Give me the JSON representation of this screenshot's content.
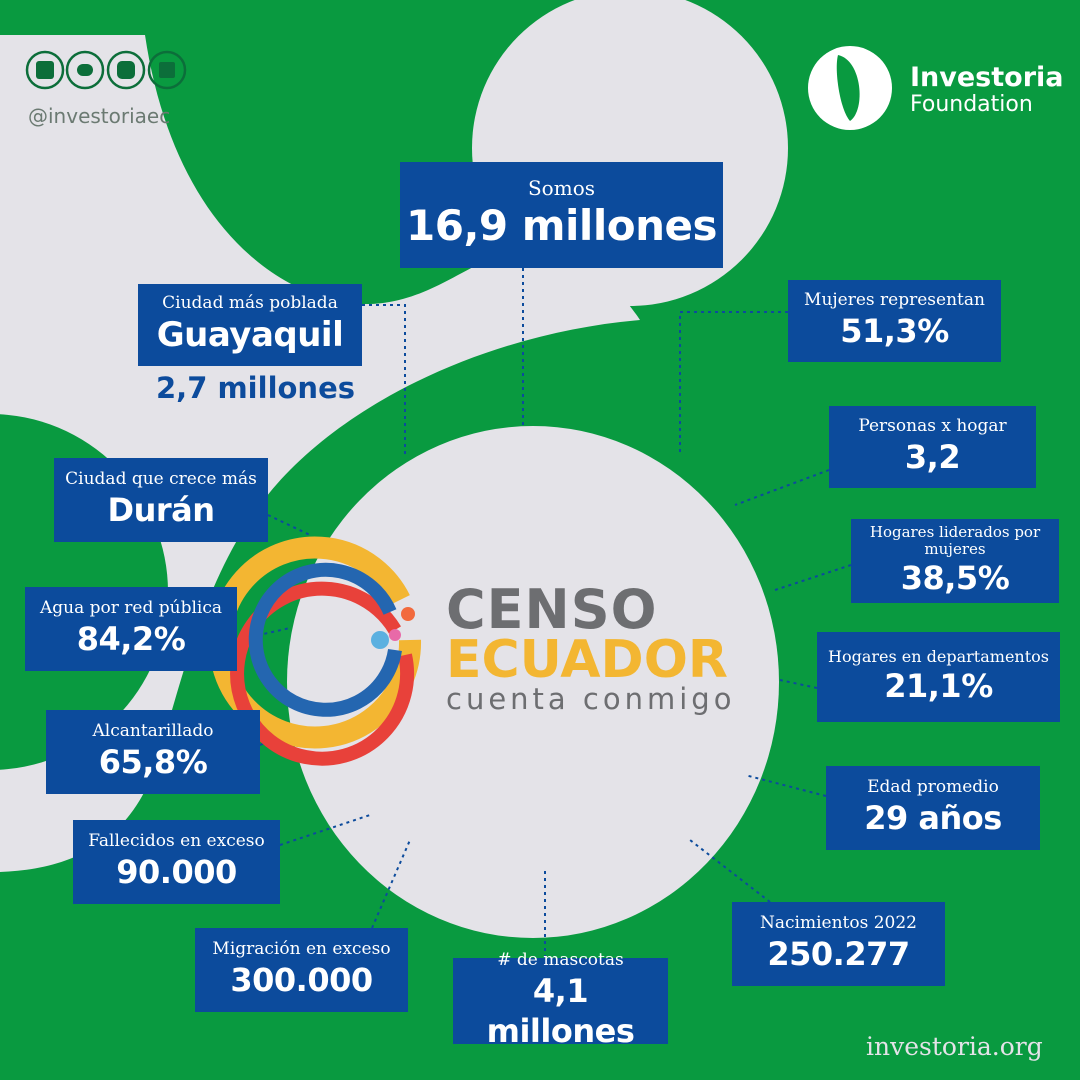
{
  "social": {
    "handle": "@investoriaec"
  },
  "brand": {
    "name": "Investoria",
    "subtitle": "Foundation"
  },
  "logo": {
    "line1": "CENSO",
    "line2": "ECUADOR",
    "tagline": "cuenta conmigo"
  },
  "stats": [
    {
      "label": "Somos",
      "value": "16,9 millones"
    },
    {
      "label": "Ciudad más poblada",
      "value": "Guayaquil",
      "note": "2,7 millones"
    },
    {
      "label": "Mujeres representan",
      "value": "51,3%"
    },
    {
      "label": "Personas x hogar",
      "value": "3,2"
    },
    {
      "label": "Ciudad que crece más",
      "value": "Durán"
    },
    {
      "label": "Hogares liderados por mujeres",
      "value": "38,5%"
    },
    {
      "label": "Agua por red pública",
      "value": "84,2%"
    },
    {
      "label": "Hogares en departamentos",
      "value": "21,1%"
    },
    {
      "label": "Alcantarillado",
      "value": "65,8%"
    },
    {
      "label": "Edad promedio",
      "value": "29 años"
    },
    {
      "label": "Fallecidos en exceso",
      "value": "90.000"
    },
    {
      "label": "Nacimientos 2022",
      "value": "250.277"
    },
    {
      "label": "Migración en exceso",
      "value": "300.000"
    },
    {
      "label": "# de mascotas",
      "value": "4,1 millones"
    }
  ],
  "footer": {
    "url": "investoria.org"
  }
}
